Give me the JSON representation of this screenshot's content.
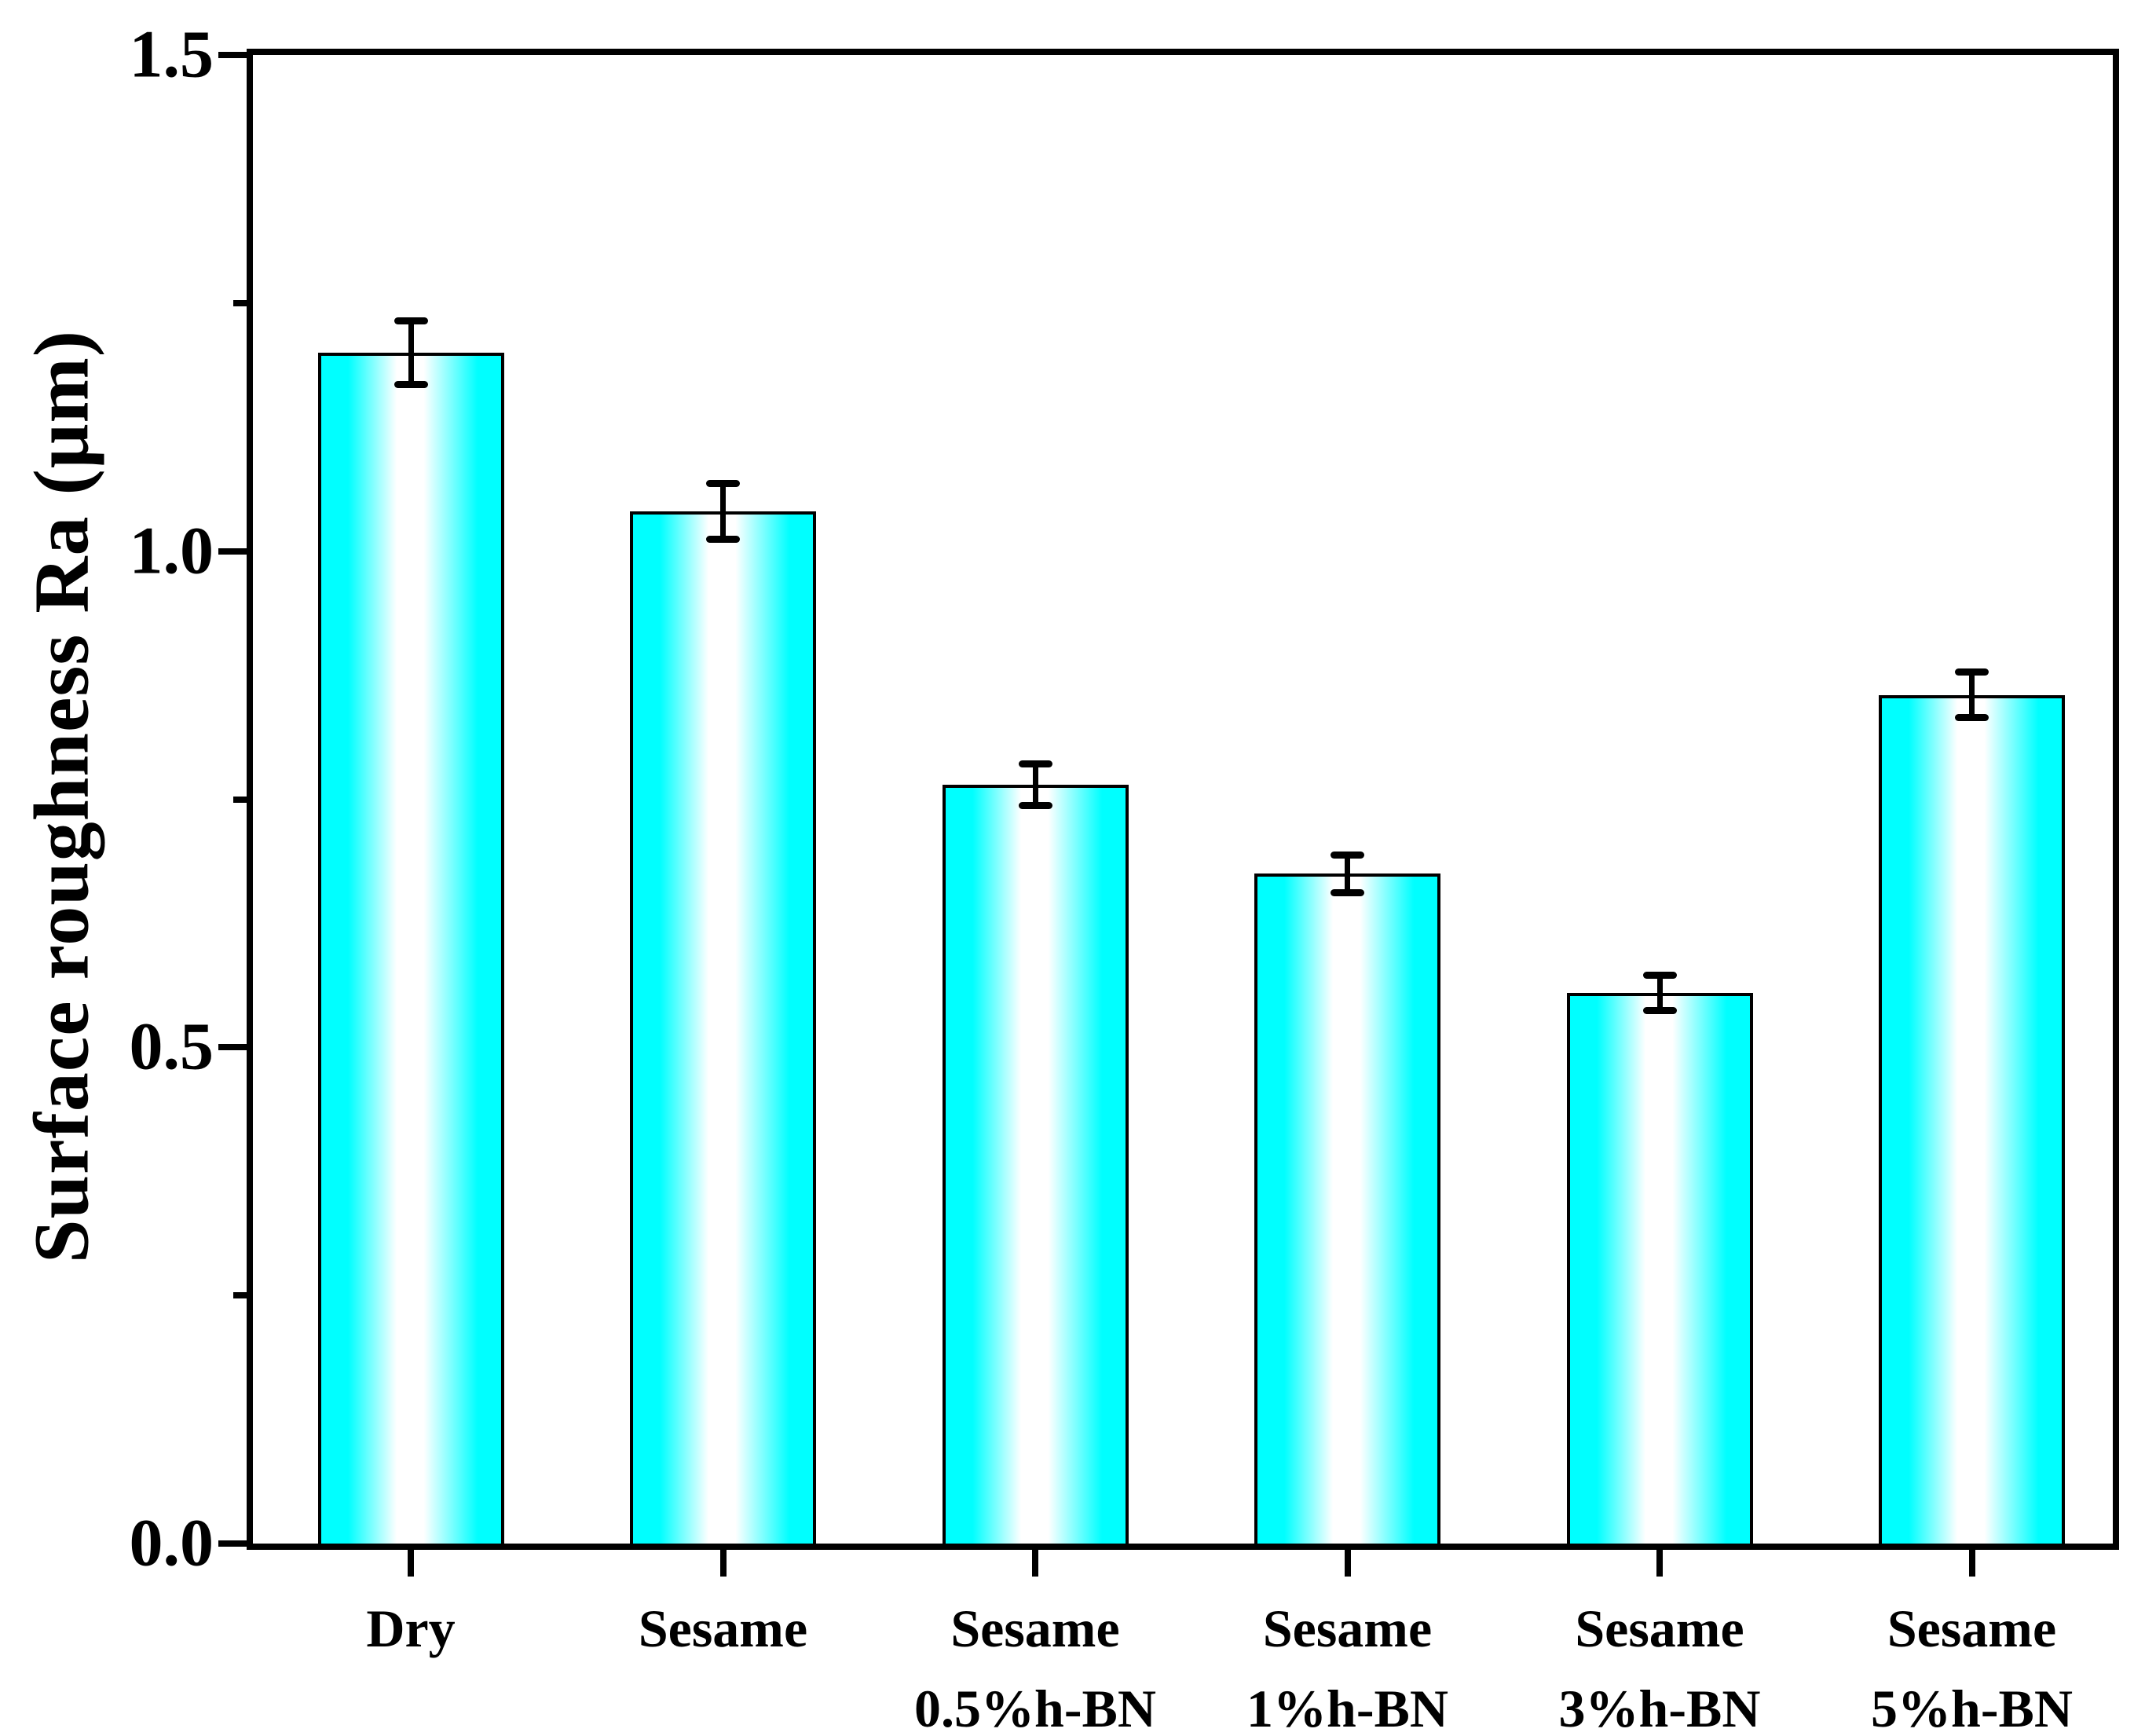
{
  "chart_data": {
    "type": "bar",
    "title": "",
    "xlabel": "",
    "ylabel": "Surface roughness Ra (μm)",
    "ylim": [
      0.0,
      1.5
    ],
    "yticks_major": [
      0.0,
      0.5,
      1.0,
      1.5
    ],
    "ytick_labels": [
      "0.0",
      "0.5",
      "1.0",
      "1.5"
    ],
    "yticks_minor": [
      0.25,
      0.75,
      1.25
    ],
    "categories": [
      "Dry",
      "Sesame",
      "Sesame 0.5%h-BN",
      "Sesame 1%h-BN",
      "Sesame 3%h-BN",
      "Sesame 5%h-BN"
    ],
    "category_label_lines": [
      [
        "Dry"
      ],
      [
        "Sesame"
      ],
      [
        "Sesame",
        "0.5%h-BN"
      ],
      [
        "Sesame",
        "1%h-BN"
      ],
      [
        "Sesame",
        "3%h-BN"
      ],
      [
        "Sesame",
        "5%h-BN"
      ]
    ],
    "values": [
      1.2,
      1.04,
      0.765,
      0.675,
      0.555,
      0.855
    ],
    "errors": [
      0.032,
      0.028,
      0.021,
      0.019,
      0.018,
      0.023
    ],
    "grid": false,
    "legend": null,
    "colors": {
      "bar_main": "#00FFFF",
      "bar_highlight": "#FFFFFF",
      "stroke": "#000000",
      "background": "#FFFFFF"
    },
    "bar_style": "vertical cylinder gradient: cyan edges fading to white center, black outline, black T-shaped error bars"
  }
}
